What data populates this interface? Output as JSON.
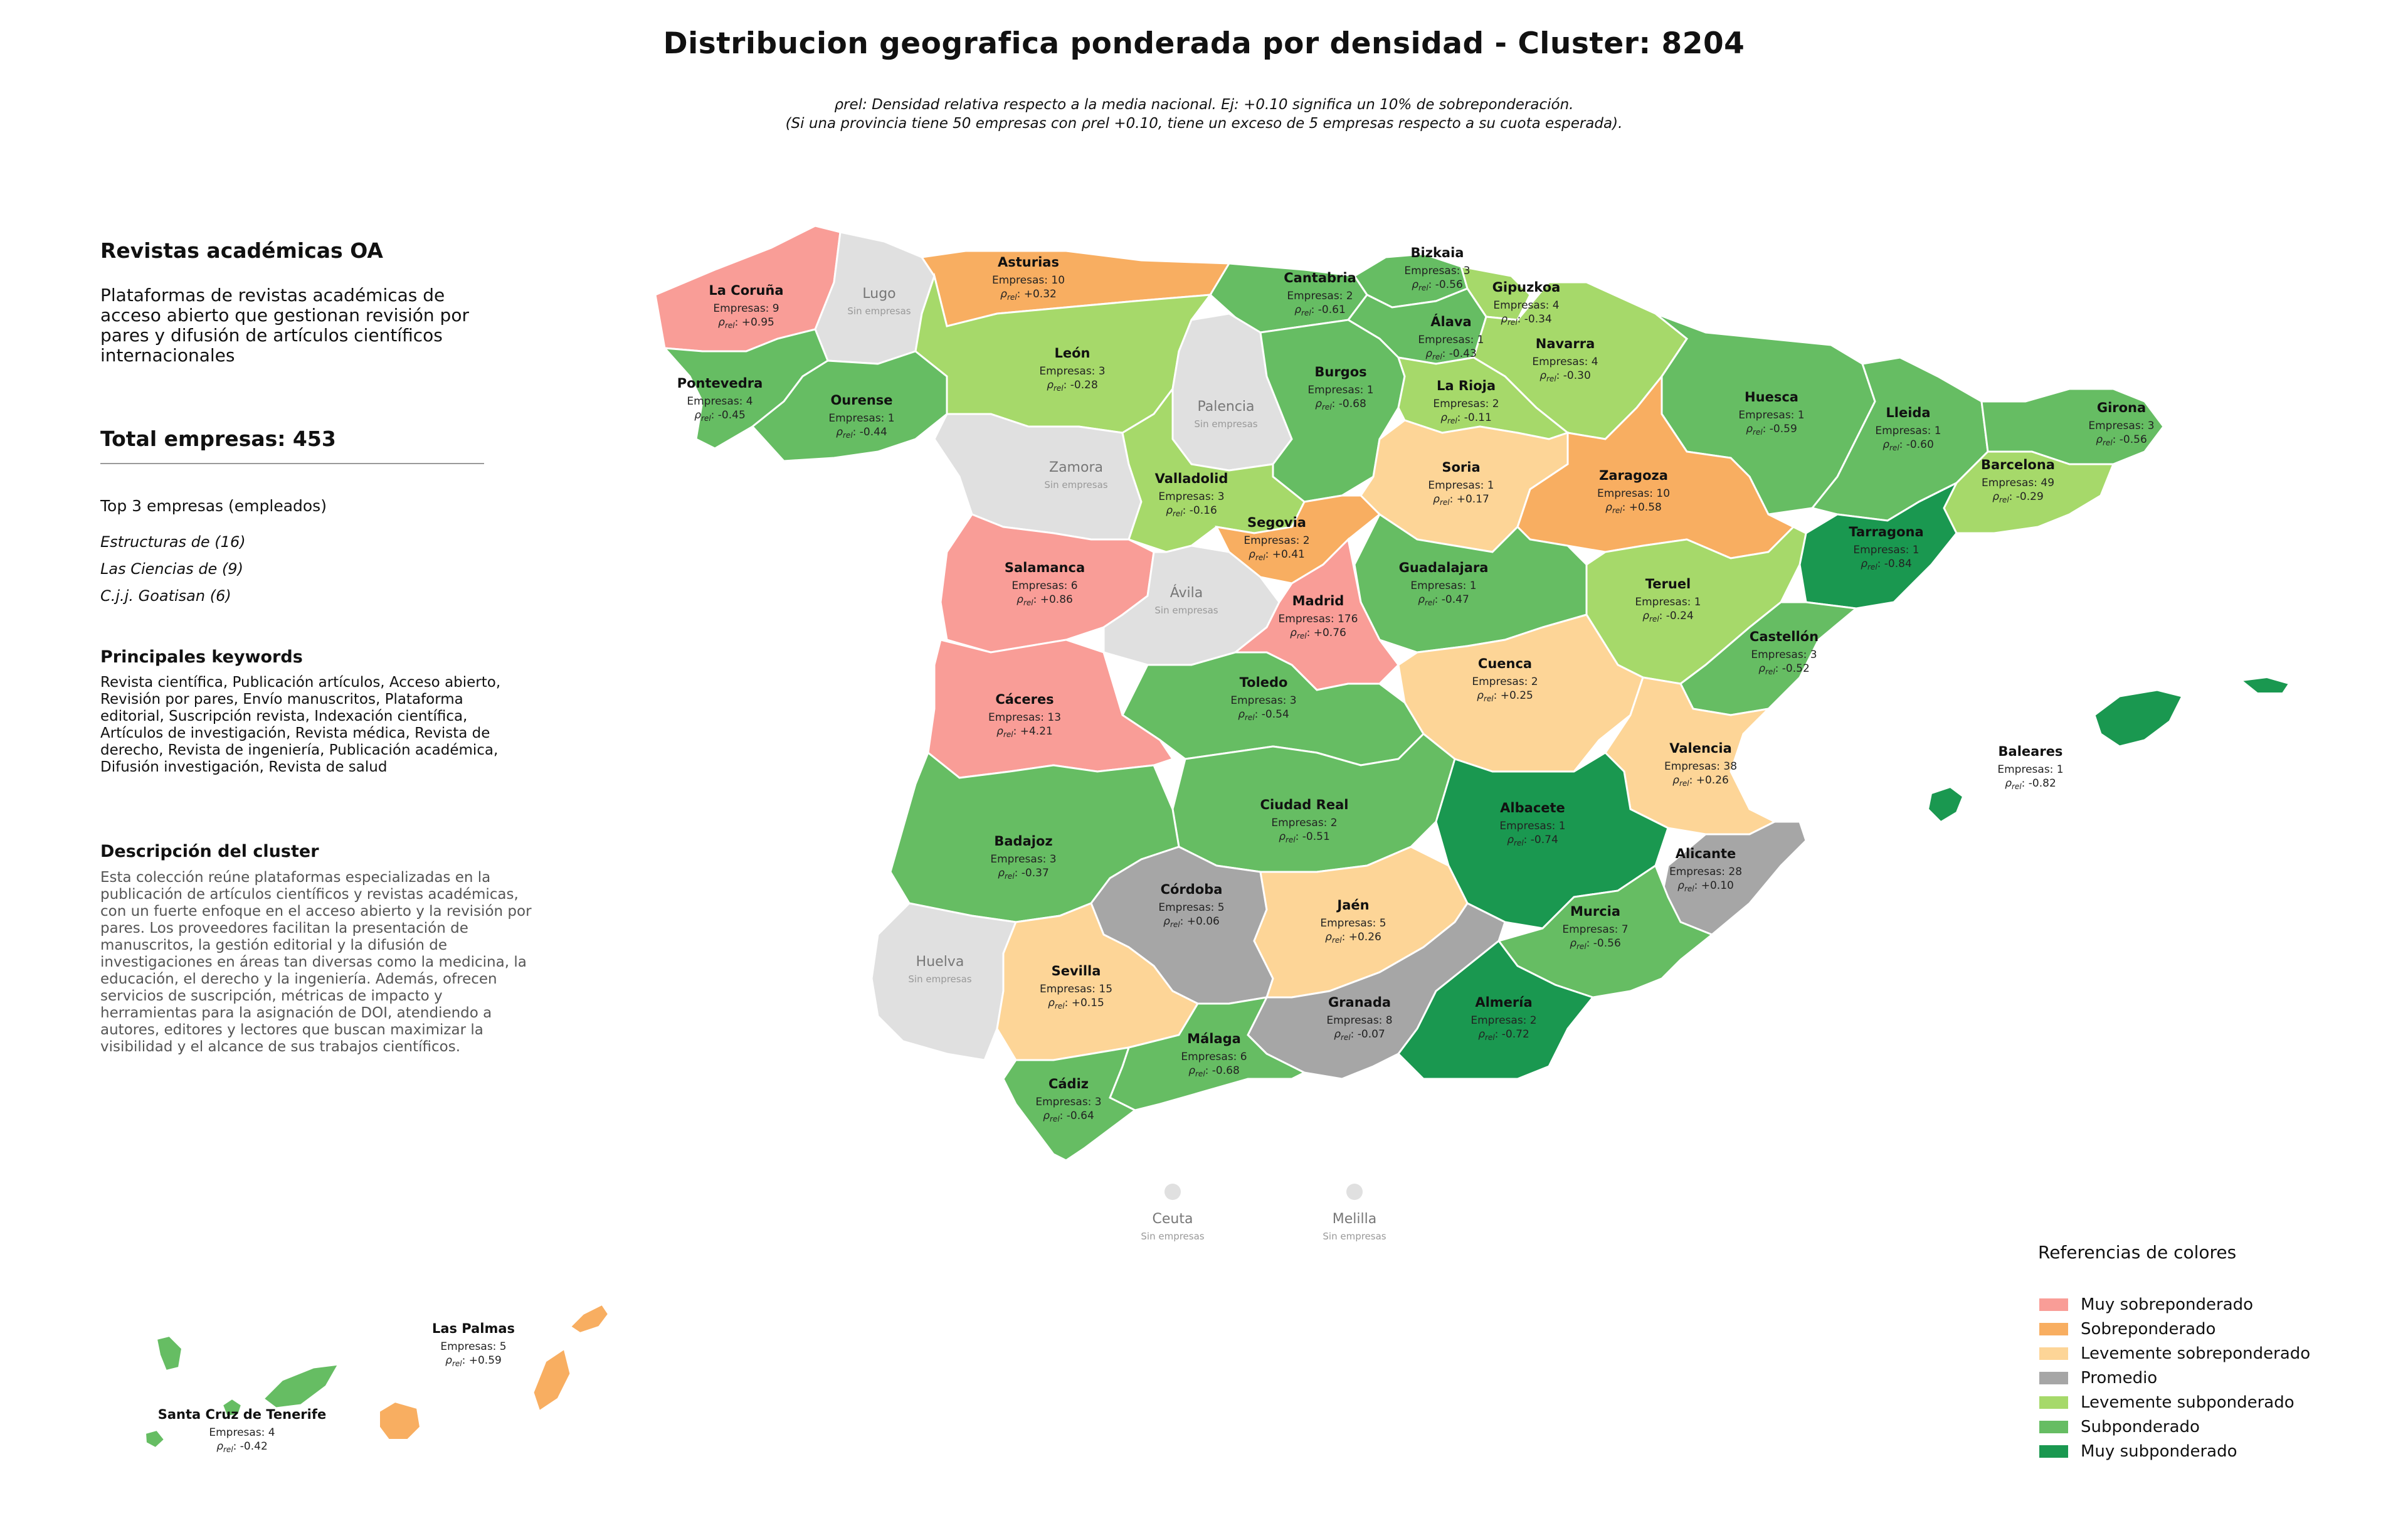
{
  "title": "Distribucion geografica ponderada por densidad - Cluster: 8204",
  "subtitle_line1": "ρrel: Densidad relativa respecto a la media nacional. Ej: +0.10 significa un 10% de sobreponderación.",
  "subtitle_line2": "(Si una provincia tiene 50 empresas con ρrel +0.10, tiene un exceso de 5 empresas respecto a su cuota esperada).",
  "panel": {
    "cluster_name": "Revistas académicas OA",
    "cluster_summary": "Plataformas de revistas académicas de acceso abierto que gestionan revisión por pares y difusión de artículos científicos internacionales",
    "total": "Total empresas: 453",
    "top3_header": "Top 3 empresas (empleados)",
    "top3": [
      "Estructuras de (16)",
      "Las Ciencias de (9)",
      "C.j.j. Goatisan (6)"
    ],
    "keywords_header": "Principales keywords",
    "keywords": "Revista científica, Publicación artículos, Acceso abierto, Revisión por pares, Envío manuscritos, Plataforma editorial, Suscripción revista, Indexación científica, Artículos de investigación, Revista médica, Revista de derecho, Revista de ingeniería, Publicación académica, Difusión investigación, Revista de salud",
    "description_header": "Descripción del cluster",
    "description": "Esta colección reúne plataformas especializadas en la publicación de artículos científicos y revistas académicas, con un fuerte enfoque en el acceso abierto y la revisión por pares. Los proveedores facilitan la presentación de manuscritos, la gestión editorial y la difusión de investigaciones en áreas tan diversas como la medicina, la educación, el derecho y la ingeniería. Además, ofrecen servicios de suscripción, métricas de impacto y herramientas para la asignación de DOI, atendiendo a autores, editores y lectores que buscan maximizar la visibilidad y el alcance de sus trabajos científicos."
  },
  "colors": {
    "muy_sobre": "#f99d97",
    "sobre": "#f8ae61",
    "lev_sobre": "#fdd597",
    "promedio": "#a6a6a6",
    "lev_sub": "#a6d96a",
    "sub": "#66bd63",
    "muy_sub": "#1a9850",
    "sin": "#e0e0e0"
  },
  "legend": {
    "title": "Referencias de colores",
    "items": [
      {
        "label": "Muy sobreponderado",
        "cat": "muy_sobre"
      },
      {
        "label": "Sobreponderado",
        "cat": "sobre"
      },
      {
        "label": "Levemente sobreponderado",
        "cat": "lev_sobre"
      },
      {
        "label": "Promedio",
        "cat": "promedio"
      },
      {
        "label": "Levemente subponderado",
        "cat": "lev_sub"
      },
      {
        "label": "Subponderado",
        "cat": "sub"
      },
      {
        "label": "Muy subponderado",
        "cat": "muy_sub"
      }
    ]
  },
  "empresas_label": "Empresas:",
  "sin_label": "Sin empresas",
  "provinces": [
    {
      "name": "La Coruña",
      "empresas": 9,
      "rho": "+0.95",
      "cat": "muy_sobre"
    },
    {
      "name": "Lugo",
      "empresas": null,
      "rho": null,
      "cat": "sin"
    },
    {
      "name": "Asturias",
      "empresas": 10,
      "rho": "+0.32",
      "cat": "sobre"
    },
    {
      "name": "Cantabria",
      "empresas": 2,
      "rho": "-0.61",
      "cat": "sub"
    },
    {
      "name": "Bizkaia",
      "empresas": 3,
      "rho": "-0.56",
      "cat": "sub"
    },
    {
      "name": "Gipuzkoa",
      "empresas": 4,
      "rho": "-0.34",
      "cat": "lev_sub"
    },
    {
      "name": "Álava",
      "empresas": 1,
      "rho": "-0.43",
      "cat": "sub"
    },
    {
      "name": "Navarra",
      "empresas": 4,
      "rho": "-0.30",
      "cat": "lev_sub"
    },
    {
      "name": "Pontevedra",
      "empresas": 4,
      "rho": "-0.45",
      "cat": "sub"
    },
    {
      "name": "Ourense",
      "empresas": 1,
      "rho": "-0.44",
      "cat": "sub"
    },
    {
      "name": "León",
      "empresas": 3,
      "rho": "-0.28",
      "cat": "lev_sub"
    },
    {
      "name": "Palencia",
      "empresas": null,
      "rho": null,
      "cat": "sin"
    },
    {
      "name": "Burgos",
      "empresas": 1,
      "rho": "-0.68",
      "cat": "sub"
    },
    {
      "name": "La Rioja",
      "empresas": 2,
      "rho": "-0.11",
      "cat": "lev_sub"
    },
    {
      "name": "Huesca",
      "empresas": 1,
      "rho": "-0.59",
      "cat": "sub"
    },
    {
      "name": "Lleida",
      "empresas": 1,
      "rho": "-0.60",
      "cat": "sub"
    },
    {
      "name": "Girona",
      "empresas": 3,
      "rho": "-0.56",
      "cat": "sub"
    },
    {
      "name": "Zamora",
      "empresas": null,
      "rho": null,
      "cat": "sin"
    },
    {
      "name": "Valladolid",
      "empresas": 3,
      "rho": "-0.16",
      "cat": "lev_sub"
    },
    {
      "name": "Soria",
      "empresas": 1,
      "rho": "+0.17",
      "cat": "lev_sobre"
    },
    {
      "name": "Zaragoza",
      "empresas": 10,
      "rho": "+0.58",
      "cat": "sobre"
    },
    {
      "name": "Barcelona",
      "empresas": 49,
      "rho": "-0.29",
      "cat": "lev_sub"
    },
    {
      "name": "Segovia",
      "empresas": 2,
      "rho": "+0.41",
      "cat": "sobre"
    },
    {
      "name": "Tarragona",
      "empresas": 1,
      "rho": "-0.84",
      "cat": "muy_sub"
    },
    {
      "name": "Salamanca",
      "empresas": 6,
      "rho": "+0.86",
      "cat": "muy_sobre"
    },
    {
      "name": "Guadalajara",
      "empresas": 1,
      "rho": "-0.47",
      "cat": "sub"
    },
    {
      "name": "Ávila",
      "empresas": null,
      "rho": null,
      "cat": "sin"
    },
    {
      "name": "Madrid",
      "empresas": 176,
      "rho": "+0.76",
      "cat": "muy_sobre"
    },
    {
      "name": "Teruel",
      "empresas": 1,
      "rho": "-0.24",
      "cat": "lev_sub"
    },
    {
      "name": "Castellón",
      "empresas": 3,
      "rho": "-0.52",
      "cat": "sub"
    },
    {
      "name": "Cuenca",
      "empresas": 2,
      "rho": "+0.25",
      "cat": "lev_sobre"
    },
    {
      "name": "Toledo",
      "empresas": 3,
      "rho": "-0.54",
      "cat": "sub"
    },
    {
      "name": "Cáceres",
      "empresas": 13,
      "rho": "+4.21",
      "cat": "muy_sobre"
    },
    {
      "name": "Valencia",
      "empresas": 38,
      "rho": "+0.26",
      "cat": "lev_sobre"
    },
    {
      "name": "Baleares",
      "empresas": 1,
      "rho": "-0.82",
      "cat": "muy_sub"
    },
    {
      "name": "Ciudad Real",
      "empresas": 2,
      "rho": "-0.51",
      "cat": "sub"
    },
    {
      "name": "Albacete",
      "empresas": 1,
      "rho": "-0.74",
      "cat": "muy_sub"
    },
    {
      "name": "Badajoz",
      "empresas": 3,
      "rho": "-0.37",
      "cat": "sub"
    },
    {
      "name": "Alicante",
      "empresas": 28,
      "rho": "+0.10",
      "cat": "promedio"
    },
    {
      "name": "Córdoba",
      "empresas": 5,
      "rho": "+0.06",
      "cat": "promedio"
    },
    {
      "name": "Jaén",
      "empresas": 5,
      "rho": "+0.26",
      "cat": "lev_sobre"
    },
    {
      "name": "Murcia",
      "empresas": 7,
      "rho": "-0.56",
      "cat": "sub"
    },
    {
      "name": "Huelva",
      "empresas": null,
      "rho": null,
      "cat": "sin"
    },
    {
      "name": "Sevilla",
      "empresas": 15,
      "rho": "+0.15",
      "cat": "lev_sobre"
    },
    {
      "name": "Granada",
      "empresas": 8,
      "rho": "-0.07",
      "cat": "promedio"
    },
    {
      "name": "Almería",
      "empresas": 2,
      "rho": "-0.72",
      "cat": "muy_sub"
    },
    {
      "name": "Málaga",
      "empresas": 6,
      "rho": "-0.68",
      "cat": "sub"
    },
    {
      "name": "Cádiz",
      "empresas": 3,
      "rho": "-0.64",
      "cat": "sub"
    },
    {
      "name": "Ceuta",
      "empresas": null,
      "rho": null,
      "cat": "sin"
    },
    {
      "name": "Melilla",
      "empresas": null,
      "rho": null,
      "cat": "sin"
    },
    {
      "name": "Las Palmas",
      "empresas": 5,
      "rho": "+0.59",
      "cat": "sobre"
    },
    {
      "name": "Santa Cruz de Tenerife",
      "empresas": 4,
      "rho": "-0.42",
      "cat": "sub"
    }
  ]
}
